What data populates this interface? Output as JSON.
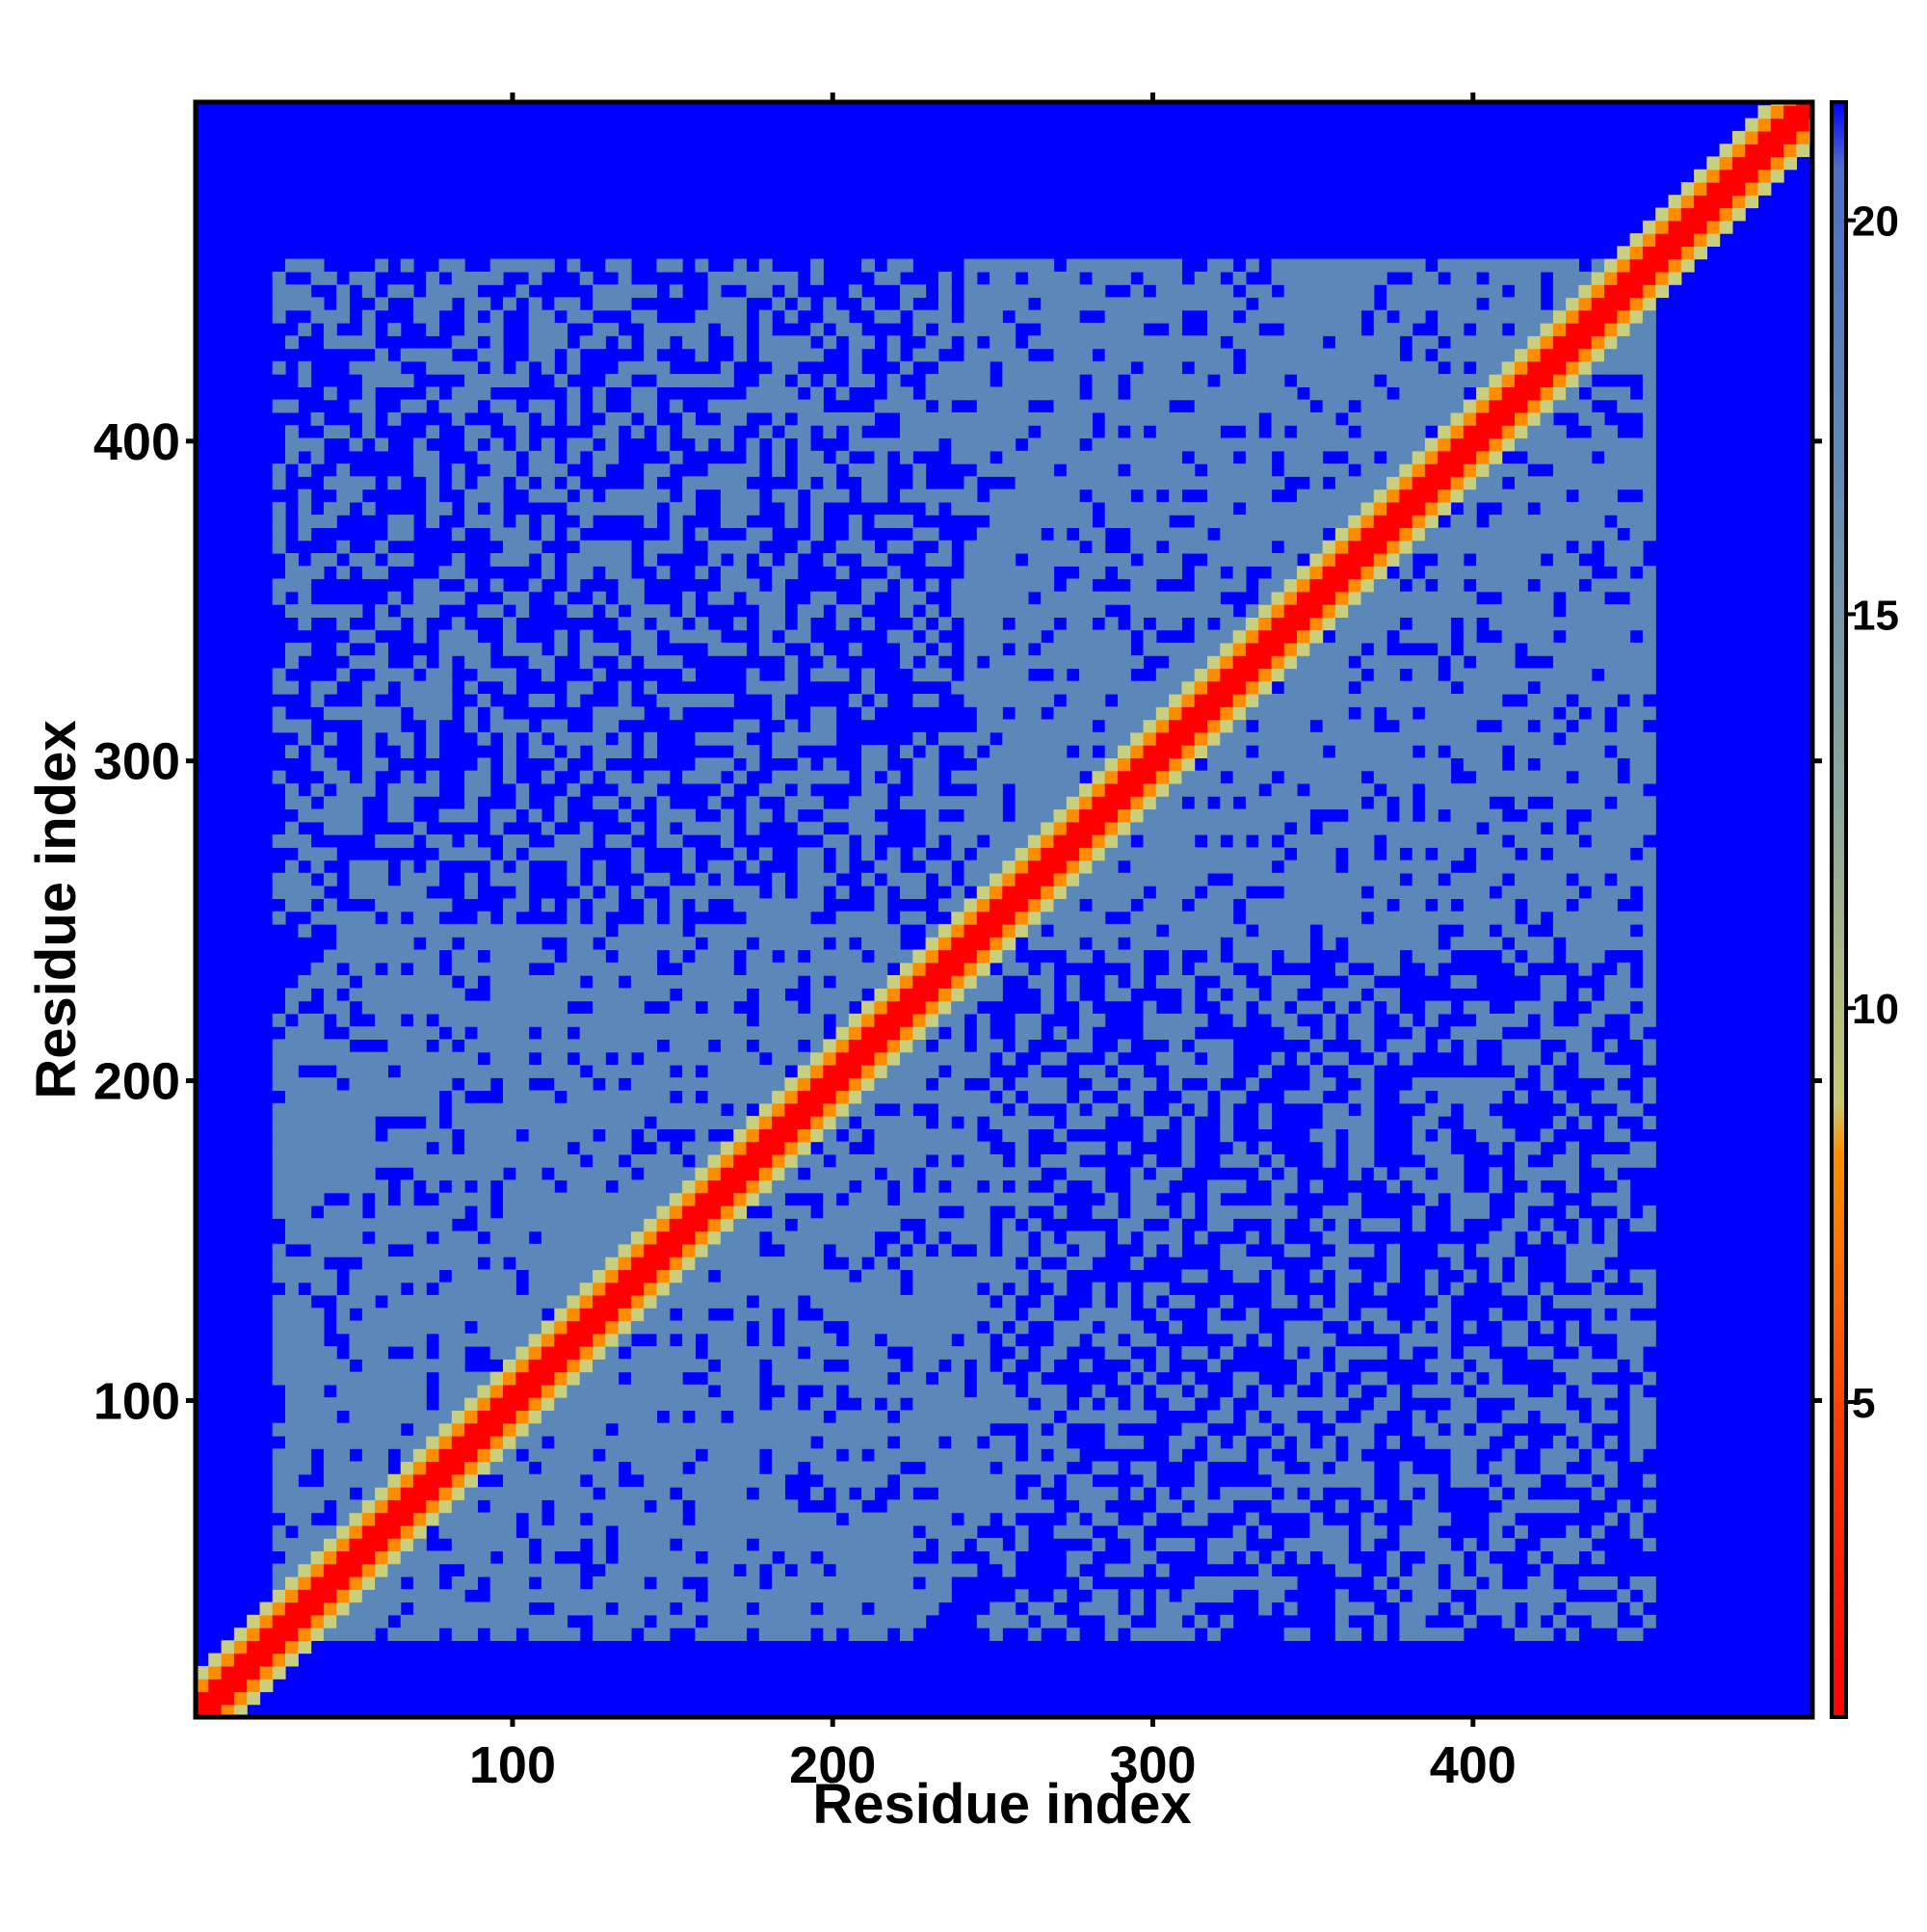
{
  "chart_data": {
    "type": "heatmap",
    "title": "",
    "xlabel": "Residue index",
    "ylabel": "Residue index",
    "xlim": [
      1,
      506
    ],
    "ylim": [
      1,
      506
    ],
    "x_ticks": [
      100,
      200,
      300,
      400
    ],
    "y_ticks": [
      100,
      200,
      300,
      400
    ],
    "colorbar": {
      "range": [
        1,
        21.5
      ],
      "ticks": [
        5,
        10,
        15,
        20
      ],
      "colors": {
        "near": "#ff0000",
        "mid": "#ff8c00",
        "light": "#c8d080",
        "far": "#5b87b9",
        "max": "#0000ff"
      }
    },
    "features": {
      "diagonal": "contact along x = y from 1 to 506",
      "domains": [
        {
          "range": [
            1,
            240
          ],
          "label": ""
        },
        {
          "range": [
            240,
            450
          ],
          "label": ""
        }
      ]
    }
  }
}
